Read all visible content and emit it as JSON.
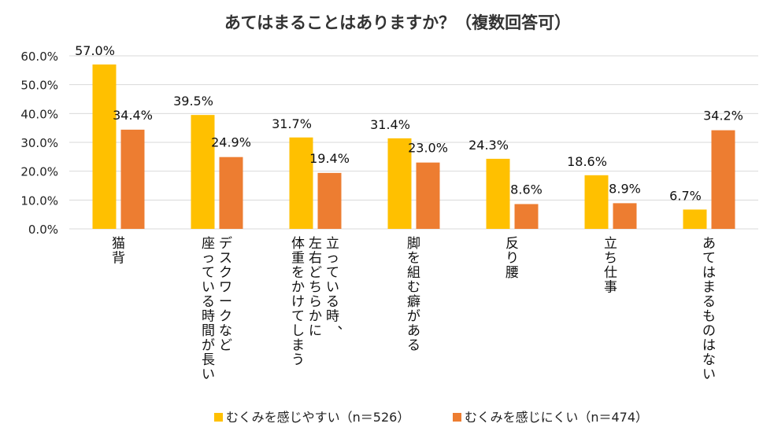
{
  "chart_data": {
    "type": "bar",
    "title": "あてはまることはありますか？（複数回答可）",
    "categories": [
      [
        "猫背"
      ],
      [
        "デスクワークなど",
        "座っている時間が長い"
      ],
      [
        "立っている時、",
        "左右どちらかに",
        "体重をかけてしまう"
      ],
      [
        "脚を組む癖がある"
      ],
      [
        "反り腰"
      ],
      [
        "立ち仕事"
      ],
      [
        "あてはまるものはない"
      ]
    ],
    "series": [
      {
        "name": "むくみを感じやすい（n＝526）",
        "color": "#FFC000",
        "values": [
          57.0,
          39.5,
          31.7,
          31.4,
          24.3,
          18.6,
          6.7
        ],
        "labels": [
          "57.0%",
          "39.5%",
          "31.7%",
          "31.4%",
          "24.3%",
          "18.6%",
          "6.7%"
        ]
      },
      {
        "name": "むくみを感じにくい（n＝474）",
        "color": "#ED7D31",
        "values": [
          34.4,
          24.9,
          19.4,
          23.0,
          8.6,
          8.9,
          34.2
        ],
        "labels": [
          "34.4%",
          "24.9%",
          "19.4%",
          "23.0%",
          "8.6%",
          "8.9%",
          "34.2%"
        ]
      }
    ],
    "yticks": [
      "0.0%",
      "10.0%",
      "20.0%",
      "30.0%",
      "40.0%",
      "50.0%",
      "60.0%"
    ],
    "ylim": [
      0,
      60
    ],
    "grid": true,
    "legend_position": "bottom"
  }
}
